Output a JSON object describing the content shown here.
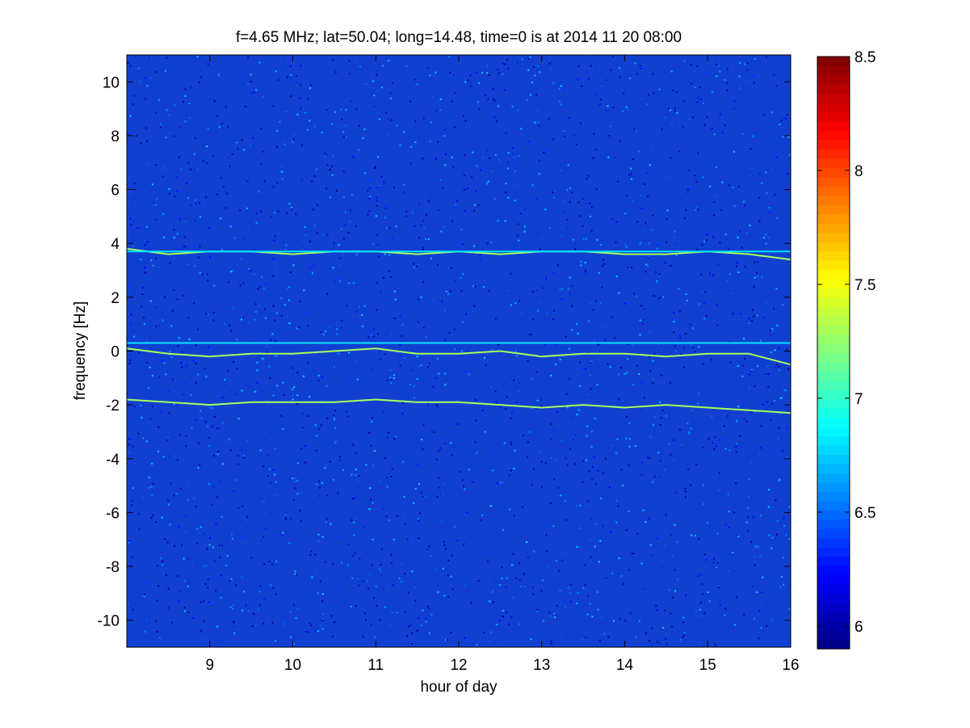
{
  "chart_data": {
    "type": "heatmap",
    "title": "f=4.65 MHz;  lat=50.04; long=14.48, time=0 is at 2014 11 20 08:00",
    "xlabel": "hour of day",
    "ylabel": "frequency [Hz]",
    "xlim": [
      8,
      16
    ],
    "ylim": [
      -11,
      11
    ],
    "x_ticks": [
      9,
      10,
      11,
      12,
      13,
      14,
      15,
      16
    ],
    "x_tick_labels": [
      "9",
      "10",
      "11",
      "12",
      "13",
      "14",
      "15",
      "16"
    ],
    "y_ticks": [
      10,
      8,
      6,
      4,
      2,
      0,
      -2,
      -4,
      -6,
      -8,
      -10
    ],
    "y_tick_labels": [
      "10",
      "8",
      "6",
      "4",
      "2",
      "0",
      "-2",
      "-4",
      "-6",
      "-8",
      "-10"
    ],
    "colorbar": {
      "colormap": "jet",
      "clim": [
        5.9,
        8.5
      ],
      "ticks": [
        6,
        6.5,
        7,
        7.5,
        8,
        8.5
      ],
      "tick_labels": [
        "6",
        "6.5",
        "7",
        "7.5",
        "8",
        "8.5"
      ]
    },
    "background_level": 6.2,
    "grid": false,
    "series": [
      {
        "x": [
          8.0,
          8.5,
          9.0,
          9.5,
          10.0,
          10.5,
          11.0,
          11.5,
          12.0,
          12.5,
          13.0,
          13.5,
          14.0,
          14.5,
          15.0,
          15.5,
          16.0
        ],
        "values": [
          3.8,
          3.6,
          3.7,
          3.7,
          3.6,
          3.7,
          3.7,
          3.6,
          3.7,
          3.6,
          3.7,
          3.7,
          3.6,
          3.6,
          3.7,
          3.6,
          3.4
        ],
        "level": 7.3
      },
      {
        "x": [
          8.0,
          8.5,
          9.0,
          9.5,
          10.0,
          10.5,
          11.0,
          11.5,
          12.0,
          12.5,
          13.0,
          13.5,
          14.0,
          14.5,
          15.0,
          15.5,
          16.0
        ],
        "values": [
          3.7,
          3.7,
          3.7,
          3.7,
          3.7,
          3.7,
          3.7,
          3.7,
          3.7,
          3.7,
          3.7,
          3.7,
          3.7,
          3.7,
          3.7,
          3.7,
          3.7
        ],
        "level": 6.8
      },
      {
        "x": [
          8.0,
          8.5,
          9.0,
          9.5,
          10.0,
          10.5,
          11.0,
          11.5,
          12.0,
          12.5,
          13.0,
          13.5,
          14.0,
          14.5,
          15.0,
          15.5,
          16.0
        ],
        "values": [
          0.1,
          -0.1,
          -0.2,
          -0.1,
          -0.1,
          0.0,
          0.1,
          -0.1,
          -0.1,
          0.0,
          -0.2,
          -0.1,
          -0.1,
          -0.2,
          -0.1,
          -0.1,
          -0.5
        ],
        "level": 7.3
      },
      {
        "x": [
          8.0,
          8.5,
          9.0,
          9.5,
          10.0,
          10.5,
          11.0,
          11.5,
          12.0,
          12.5,
          13.0,
          13.5,
          14.0,
          14.5,
          15.0,
          15.5,
          16.0
        ],
        "values": [
          0.3,
          0.3,
          0.3,
          0.3,
          0.3,
          0.3,
          0.3,
          0.3,
          0.3,
          0.3,
          0.3,
          0.3,
          0.3,
          0.3,
          0.3,
          0.3,
          0.3
        ],
        "level": 6.8
      },
      {
        "x": [
          8.0,
          8.5,
          9.0,
          9.5,
          10.0,
          10.5,
          11.0,
          11.5,
          12.0,
          12.5,
          13.0,
          13.5,
          14.0,
          14.5,
          15.0,
          15.5,
          16.0
        ],
        "values": [
          -1.8,
          -1.9,
          -2.0,
          -1.9,
          -1.9,
          -1.9,
          -1.8,
          -1.9,
          -1.9,
          -2.0,
          -2.1,
          -2.0,
          -2.1,
          -2.0,
          -2.1,
          -2.2,
          -2.3
        ],
        "level": 7.3
      }
    ]
  }
}
